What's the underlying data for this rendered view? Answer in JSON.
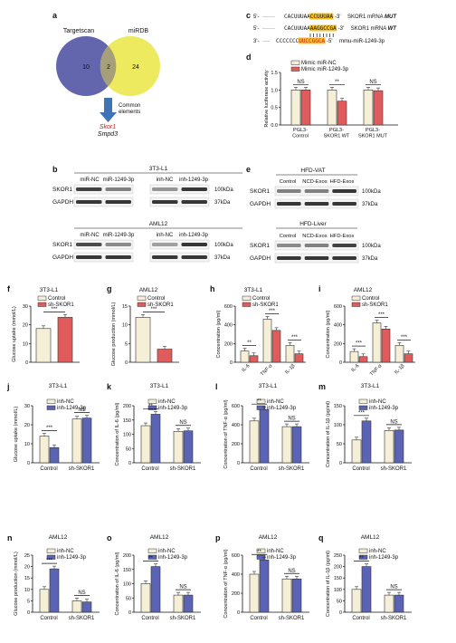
{
  "colors": {
    "venn_left": "#5b5ea8",
    "venn_right": "#ece956",
    "ctrl_fill": "#f4efd6",
    "red_fill": "#e05c5c",
    "blue_fill": "#5a63b4",
    "highlight": "#f6c02a",
    "arrow": "#3e73b6",
    "gene_red": "#cc2020",
    "band": "#222222"
  },
  "panels": {
    "a": {
      "letter": "a",
      "left_label": "Targetscan",
      "right_label": "miRDB",
      "left_count": "10",
      "overlap_count": "2",
      "right_count": "24",
      "arrow_label_1": "Common",
      "arrow_label_2": "elements",
      "gene_1": "Skor1",
      "gene_2": "Smpd3"
    },
    "c": {
      "letter": "c",
      "rows": [
        {
          "prefix": "5'-",
          "dots": "·······",
          "seq": "CACUUUAA",
          "highlight": "CCUUUAA",
          "suffix": "-3'",
          "label": "SKOR1 mRNA ",
          "label_em": "MUT"
        },
        {
          "prefix": "5'-",
          "dots": "·······",
          "seq": "CACUUUAA",
          "highlight": "AAGGCCGA",
          "suffix": "-3'",
          "label": "SKOR1 mRNA ",
          "label_em": "WT"
        },
        {
          "prefix": "3'-",
          "dots": "····",
          "seq": "CCCCCCC",
          "highlight": "UUCCGGCA",
          "suffix": "-5'",
          "label": "mmu-miR-1249-3p",
          "label_em": ""
        }
      ]
    },
    "d": {
      "letter": "d",
      "ylabel": "Relative luciferase activity",
      "legend": [
        "Mimic miR-NC",
        "Mimic miR-1249-3p"
      ],
      "groups": [
        "PGL3-\nControl",
        "PGL3-\nSKOR1 WT",
        "PGL3-\nSKOR1 MUT"
      ],
      "sig": [
        "NS",
        "**",
        "NS"
      ],
      "ticks": [
        "0.0",
        "0.5",
        "1.0",
        "1.5"
      ],
      "ctrl": [
        1.0,
        1.0,
        1.0
      ],
      "treat": [
        1.0,
        0.68,
        0.98
      ],
      "ymax": 1.5
    },
    "b": {
      "letter": "b",
      "top_title": "3T3-L1",
      "bottom_title": "AML12",
      "left_lanes": [
        "miR-NC",
        "miR-1249-3p"
      ],
      "right_lanes": [
        "inh-NC",
        "inh-1249-3p"
      ],
      "proteins": [
        "SKOR1",
        "GAPDH"
      ],
      "sizes": [
        "100kDa",
        "37kDa"
      ]
    },
    "e": {
      "letter": "e",
      "top_title": "HFD-VAT",
      "bottom_title": "HFD-Liver",
      "lanes": [
        "Control",
        "NCD-Exos",
        "HFD-Exos"
      ],
      "proteins": [
        "SKOR1",
        "GAPDH"
      ],
      "sizes": [
        "100kDa",
        "37kDa"
      ]
    }
  },
  "two_bar_panels": [
    {
      "letter": "f",
      "title": "3T3-L1",
      "ylabel": "Glucose uptake (mmol/L)",
      "legend": [
        "Control",
        "sh-SKOR1"
      ],
      "colors": [
        "ctrl",
        "red"
      ],
      "values": [
        18,
        24
      ],
      "ymax": 30,
      "ticks": [
        "0",
        "10",
        "20",
        "30"
      ],
      "sig": "***"
    },
    {
      "letter": "g",
      "title": "AML12",
      "ylabel": "Glucose production (mmol/L)",
      "legend": [
        "Control",
        "sh-SKOR1"
      ],
      "colors": [
        "ctrl",
        "red"
      ],
      "values": [
        12,
        3.5
      ],
      "ymax": 15,
      "ticks": [
        "0",
        "5",
        "10",
        "15"
      ],
      "sig": "***"
    }
  ],
  "cyto_panels": [
    {
      "letter": "h",
      "title": "3T3-L1",
      "ylabel": "Concentration (pg/ml)",
      "legend": [
        "Control",
        "sh-SKOR1"
      ],
      "categories": [
        "IL-6",
        "TNF-α",
        "IL-1β"
      ],
      "ctrl": [
        120,
        460,
        180
      ],
      "treat": [
        70,
        340,
        90
      ],
      "ymax": 600,
      "ticks": [
        "0",
        "200",
        "400",
        "600"
      ],
      "sig": [
        "**",
        "***",
        "***"
      ]
    },
    {
      "letter": "i",
      "title": "AML12",
      "ylabel": "Concentration (pg/ml)",
      "legend": [
        "Control",
        "sh-SKOR1"
      ],
      "categories": [
        "IL-6",
        "TNF-α",
        "IL-1β"
      ],
      "ctrl": [
        115,
        420,
        180
      ],
      "treat": [
        60,
        355,
        90
      ],
      "ymax": 600,
      "ticks": [
        "0",
        "200",
        "400",
        "600"
      ],
      "sig": [
        "***",
        "***",
        "***"
      ]
    }
  ],
  "inh_panels": [
    {
      "letter": "j",
      "title": "3T3-L1",
      "ylabel": "Glucose uptake (mmol/L)",
      "ctrl": [
        14,
        23
      ],
      "treat": [
        8,
        23.5
      ],
      "ymax": 30,
      "ticks": [
        "0",
        "10",
        "20",
        "30"
      ],
      "sig": [
        "***",
        "NS"
      ]
    },
    {
      "letter": "k",
      "title": "3T3-L1",
      "ylabel": "Concentration of IL-6 (pg/ml)",
      "ctrl": [
        130,
        110
      ],
      "treat": [
        170,
        112
      ],
      "ymax": 200,
      "ticks": [
        "0",
        "50",
        "100",
        "150",
        "200"
      ],
      "sig": [
        "**",
        "NS"
      ]
    },
    {
      "letter": "l",
      "title": "3T3-L1",
      "ylabel": "Concentration of TNF-α (pg/ml)",
      "ctrl": [
        440,
        380
      ],
      "treat": [
        560,
        380
      ],
      "ymax": 600,
      "ticks": [
        "0",
        "200",
        "400",
        "600"
      ],
      "sig": [
        "**",
        "NS"
      ]
    },
    {
      "letter": "m",
      "title": "3T3-L1",
      "ylabel": "Concentration of IL-1β (pg/ml)",
      "ctrl": [
        60,
        85
      ],
      "treat": [
        110,
        86
      ],
      "ymax": 150,
      "ticks": [
        "0",
        "50",
        "100",
        "150"
      ],
      "sig": [
        "***",
        "NS"
      ]
    },
    {
      "letter": "n",
      "title": "AML12",
      "ylabel": "Glucose production (mmol/L)",
      "ctrl": [
        10,
        5
      ],
      "treat": [
        19,
        4.5
      ],
      "ymax": 25,
      "ticks": [
        "0",
        "5",
        "10",
        "15",
        "20",
        "25"
      ],
      "sig": [
        "***",
        "NS"
      ]
    },
    {
      "letter": "o",
      "title": "AML12",
      "ylabel": "Concentration of IL-6 (pg/ml)",
      "ctrl": [
        100,
        60
      ],
      "treat": [
        160,
        60
      ],
      "ymax": 200,
      "ticks": [
        "0",
        "50",
        "100",
        "150",
        "200"
      ],
      "sig": [
        "**",
        "NS"
      ]
    },
    {
      "letter": "p",
      "title": "AML12",
      "ylabel": "Concentration of TNF-α (pg/ml)",
      "ctrl": [
        400,
        350
      ],
      "treat": [
        550,
        350
      ],
      "ymax": 600,
      "ticks": [
        "0",
        "200",
        "400",
        "600"
      ],
      "sig": [
        "**",
        "NS"
      ]
    },
    {
      "letter": "q",
      "title": "AML12",
      "ylabel": "Concentration of IL-1β (pg/ml)",
      "ctrl": [
        100,
        75
      ],
      "treat": [
        200,
        75
      ],
      "ymax": 250,
      "ticks": [
        "0",
        "50",
        "100",
        "150",
        "200",
        "250"
      ],
      "sig": [
        "**",
        "NS"
      ]
    }
  ],
  "inh_common": {
    "legend": [
      "inh-NC",
      "inh-1249-3p"
    ],
    "groups": [
      "Control",
      "sh-SKOR1"
    ]
  }
}
